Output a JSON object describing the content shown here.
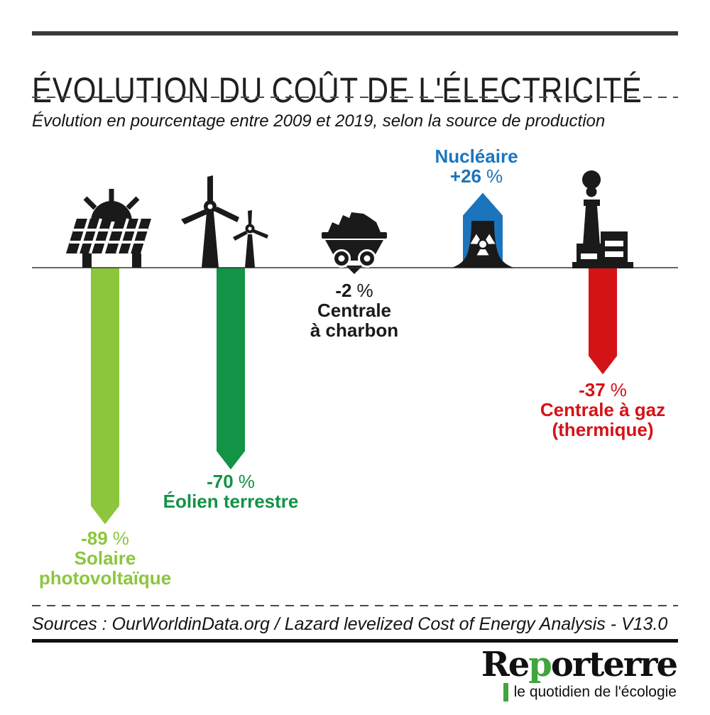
{
  "header": {
    "title": "ÉVOLUTION DU COÛT DE L'ÉLECTRICITÉ",
    "subtitle": "Évolution en pourcentage entre 2009 et 2019, selon la source de production"
  },
  "chart_data": {
    "type": "bar",
    "title": "Évolution du coût de l'électricité",
    "subtitle": "Évolution en pourcentage entre 2009 et 2019, selon la source de production",
    "unit": "%",
    "percent_sign": "%",
    "baseline": 0,
    "categories": [
      "Solaire photovoltaïque",
      "Éolien terrestre",
      "Centrale à charbon",
      "Nucléaire",
      "Centrale à gaz (thermique)"
    ],
    "values": [
      -89,
      -70,
      -2,
      26,
      -37
    ],
    "items": [
      {
        "id": "solar",
        "name": "Solaire photovoltaïque",
        "value": -89,
        "delta_label": "-89",
        "name_lines": [
          "Solaire",
          "photovoltaïque"
        ],
        "color": "#8CC63C",
        "icon": "solar-panel-icon"
      },
      {
        "id": "wind",
        "name": "Éolien terrestre",
        "value": -70,
        "delta_label": "-70",
        "name_lines": [
          "Éolien terrestre"
        ],
        "color": "#129345",
        "icon": "wind-turbines-icon"
      },
      {
        "id": "coal",
        "name": "Centrale à charbon",
        "value": -2,
        "delta_label": "-2",
        "name_lines": [
          "Centrale",
          "à charbon"
        ],
        "color": "#1A1A1A",
        "icon": "coal-cart-icon"
      },
      {
        "id": "nuclear",
        "name": "Nucléaire",
        "value": 26,
        "delta_label": "+26",
        "name_lines": [
          "Nucléaire"
        ],
        "color": "#1C75BC",
        "icon": "cooling-tower-icon"
      },
      {
        "id": "gas",
        "name": "Centrale à gaz (thermique)",
        "value": -37,
        "delta_label": "-37",
        "name_lines": [
          "Centrale à gaz",
          "(thermique)"
        ],
        "color": "#D41317",
        "icon": "gas-plant-icon"
      }
    ]
  },
  "footer": {
    "sources": "Sources : OurWorldinData.org / Lazard levelized Cost of Energy Analysis - V13.0"
  },
  "logo": {
    "part1": "Re",
    "part2": "p",
    "part3": "orterre",
    "tagline": "le quotidien de l'écologie"
  },
  "colors": {
    "solar_green": "#8CC63C",
    "wind_green": "#129345",
    "coal_black": "#1A1A1A",
    "nuclear_blue": "#1C75BC",
    "gas_red": "#D41317",
    "logo_green": "#3FA53C"
  }
}
